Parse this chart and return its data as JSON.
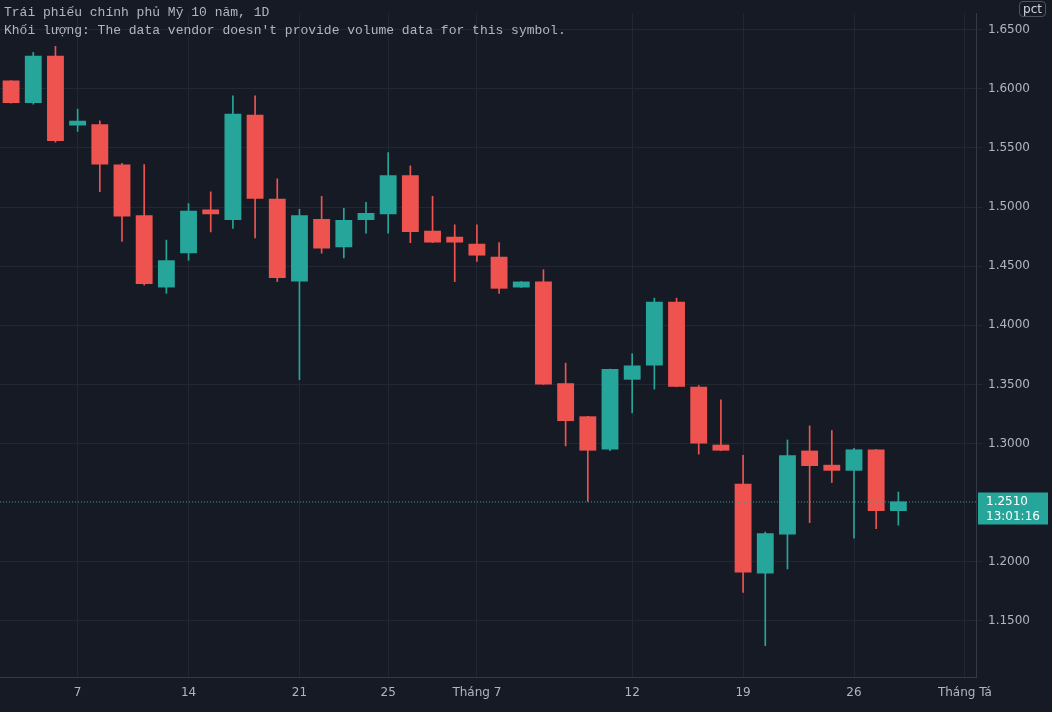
{
  "chart_data": {
    "type": "candlestick",
    "title": "Trái phiếu chính phủ Mỹ 10 năm, 1D",
    "subtitle": "Khối lượng: The data vendor doesn't provide volume data for this symbol.",
    "categories": [
      null,
      null,
      null,
      "7",
      null,
      null,
      null,
      null,
      "14",
      null,
      null,
      null,
      null,
      "21",
      null,
      null,
      null,
      "25",
      null,
      null,
      null,
      "Tháng 7",
      null,
      null,
      null,
      null,
      null,
      null,
      "12",
      null,
      null,
      null,
      null,
      "19",
      null,
      null,
      null,
      null,
      "26",
      null,
      null,
      null,
      null,
      "Tháng Tá"
    ],
    "ohlc": [
      [
        1.607,
        1.607,
        1.588,
        1.588
      ],
      [
        1.588,
        1.631,
        1.587,
        1.628
      ],
      [
        1.628,
        1.636,
        1.555,
        1.556
      ],
      [
        1.569,
        1.583,
        1.564,
        1.573
      ],
      [
        1.57,
        1.573,
        1.513,
        1.536
      ],
      [
        1.536,
        1.537,
        1.471,
        1.492
      ],
      [
        1.493,
        1.536,
        1.434,
        1.435
      ],
      [
        1.432,
        1.472,
        1.427,
        1.455
      ],
      [
        1.461,
        1.503,
        1.455,
        1.497
      ],
      [
        1.498,
        1.513,
        1.479,
        1.494
      ],
      [
        1.489,
        1.594,
        1.482,
        1.579
      ],
      [
        1.578,
        1.594,
        1.474,
        1.507
      ],
      [
        1.507,
        1.524,
        1.437,
        1.44
      ],
      [
        1.437,
        1.498,
        1.354,
        1.493
      ],
      [
        1.49,
        1.509,
        1.461,
        1.465
      ],
      [
        1.466,
        1.499,
        1.457,
        1.489
      ],
      [
        1.489,
        1.504,
        1.478,
        1.495
      ],
      [
        1.494,
        1.546,
        1.478,
        1.527
      ],
      [
        1.527,
        1.535,
        1.47,
        1.479
      ],
      [
        1.48,
        1.509,
        1.47,
        1.47
      ],
      [
        1.475,
        1.485,
        1.437,
        1.47
      ],
      [
        1.469,
        1.485,
        1.454,
        1.459
      ],
      [
        1.458,
        1.47,
        1.427,
        1.431
      ],
      [
        1.432,
        1.437,
        1.432,
        1.437
      ],
      [
        1.437,
        1.447,
        1.35,
        1.35
      ],
      [
        1.351,
        1.368,
        1.298,
        1.319
      ],
      [
        1.323,
        1.323,
        1.251,
        1.294
      ],
      [
        1.295,
        1.363,
        1.294,
        1.363
      ],
      [
        1.354,
        1.376,
        1.326,
        1.366
      ],
      [
        1.366,
        1.423,
        1.346,
        1.42
      ],
      [
        1.42,
        1.423,
        1.348,
        1.348
      ],
      [
        1.348,
        1.349,
        1.291,
        1.3
      ],
      [
        1.299,
        1.337,
        1.294,
        1.294
      ],
      [
        1.266,
        1.29,
        1.174,
        1.191
      ],
      [
        1.19,
        1.225,
        1.129,
        1.224
      ],
      [
        1.223,
        1.303,
        1.194,
        1.29
      ],
      [
        1.294,
        1.315,
        1.233,
        1.281
      ],
      [
        1.282,
        1.311,
        1.267,
        1.277
      ],
      [
        1.277,
        1.296,
        1.22,
        1.295
      ],
      [
        1.295,
        1.295,
        1.228,
        1.243
      ],
      [
        1.243,
        1.259,
        1.231,
        1.251
      ],
      null,
      null,
      null
    ],
    "colors": [
      "#ef5350",
      "#26a69a",
      "#ef5350",
      "#26a69a",
      "#ef5350",
      "#ef5350",
      "#ef5350",
      "#26a69a",
      "#26a69a",
      "#ef5350",
      "#26a69a",
      "#ef5350",
      "#ef5350",
      "#26a69a",
      "#ef5350",
      "#26a69a",
      "#26a69a",
      "#26a69a",
      "#ef5350",
      "#ef5350",
      "#ef5350",
      "#ef5350",
      "#ef5350",
      "#26a69a",
      "#ef5350",
      "#ef5350",
      "#ef5350",
      "#26a69a",
      "#26a69a",
      "#26a69a",
      "#ef5350",
      "#ef5350",
      "#ef5350",
      "#ef5350",
      "#26a69a",
      "#26a69a",
      "#ef5350",
      "#ef5350",
      "#26a69a",
      "#ef5350",
      "#26a69a",
      null,
      null,
      null
    ],
    "ylim": [
      1.102,
      1.664
    ],
    "yticks": [
      {
        "value": 1.15,
        "label": "1.1500"
      },
      {
        "value": 1.2,
        "label": "1.2000"
      },
      {
        "value": 1.3,
        "label": "1.3000"
      },
      {
        "value": 1.35,
        "label": "1.3500"
      },
      {
        "value": 1.4,
        "label": "1.4000"
      },
      {
        "value": 1.45,
        "label": "1.4500"
      },
      {
        "value": 1.5,
        "label": "1.5000"
      },
      {
        "value": 1.55,
        "label": "1.5500"
      },
      {
        "value": 1.6,
        "label": "1.6000"
      },
      {
        "value": 1.65,
        "label": "1.6500"
      }
    ],
    "ref_lines": [
      {
        "axis": "y",
        "value": 1.251,
        "label": "1.2510",
        "color": "#26a69a",
        "line_style": "dotted"
      }
    ],
    "annotations": [
      "13:01:16",
      "pct"
    ],
    "grid": true,
    "legend": false
  }
}
